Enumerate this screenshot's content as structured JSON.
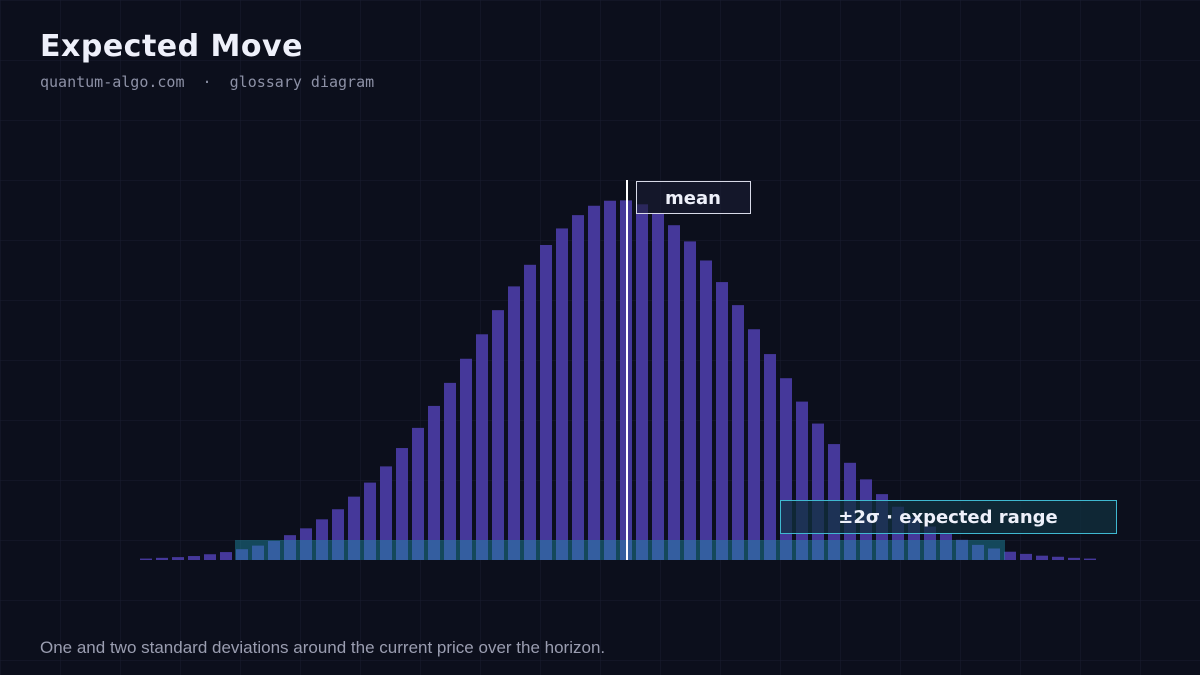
{
  "chart_data": {
    "type": "bar",
    "title": "Expected Move",
    "subtitle": "quantum-algo.com  ·  glossary diagram",
    "caption": "One and two standard deviations around the current price over the horizon.",
    "annotations": [
      "mean",
      "±2σ · expected range"
    ],
    "categories": [
      null,
      null,
      null,
      null,
      null,
      null,
      null,
      null,
      null,
      null,
      null,
      null,
      null,
      null,
      null,
      null,
      null,
      null,
      null,
      null,
      null,
      null,
      null,
      null,
      null,
      null,
      null,
      null,
      null,
      null,
      null,
      null,
      null,
      null,
      null,
      null,
      null,
      null,
      null,
      null,
      null,
      null,
      null,
      null,
      null,
      null,
      null,
      null,
      null,
      null,
      null,
      null,
      null,
      null,
      null,
      null,
      null,
      null,
      null,
      null
    ],
    "values": [
      0.4,
      0.6,
      0.8,
      1.1,
      1.6,
      2.2,
      3.0,
      4.0,
      5.3,
      6.9,
      8.8,
      11.3,
      14.1,
      17.6,
      21.5,
      26.0,
      31.1,
      36.7,
      42.8,
      49.2,
      55.9,
      62.7,
      69.4,
      76.0,
      82.0,
      87.5,
      92.1,
      95.8,
      98.4,
      99.8,
      99.9,
      98.8,
      96.4,
      93.0,
      88.5,
      83.2,
      77.2,
      70.8,
      64.1,
      57.2,
      50.5,
      44.0,
      37.9,
      32.2,
      27.0,
      22.4,
      18.3,
      14.8,
      11.8,
      9.3,
      7.2,
      5.6,
      4.2,
      3.2,
      2.3,
      1.7,
      1.2,
      0.9,
      0.6,
      0.4
    ],
    "color": "#45389a",
    "ylim": [
      0,
      100
    ]
  }
}
